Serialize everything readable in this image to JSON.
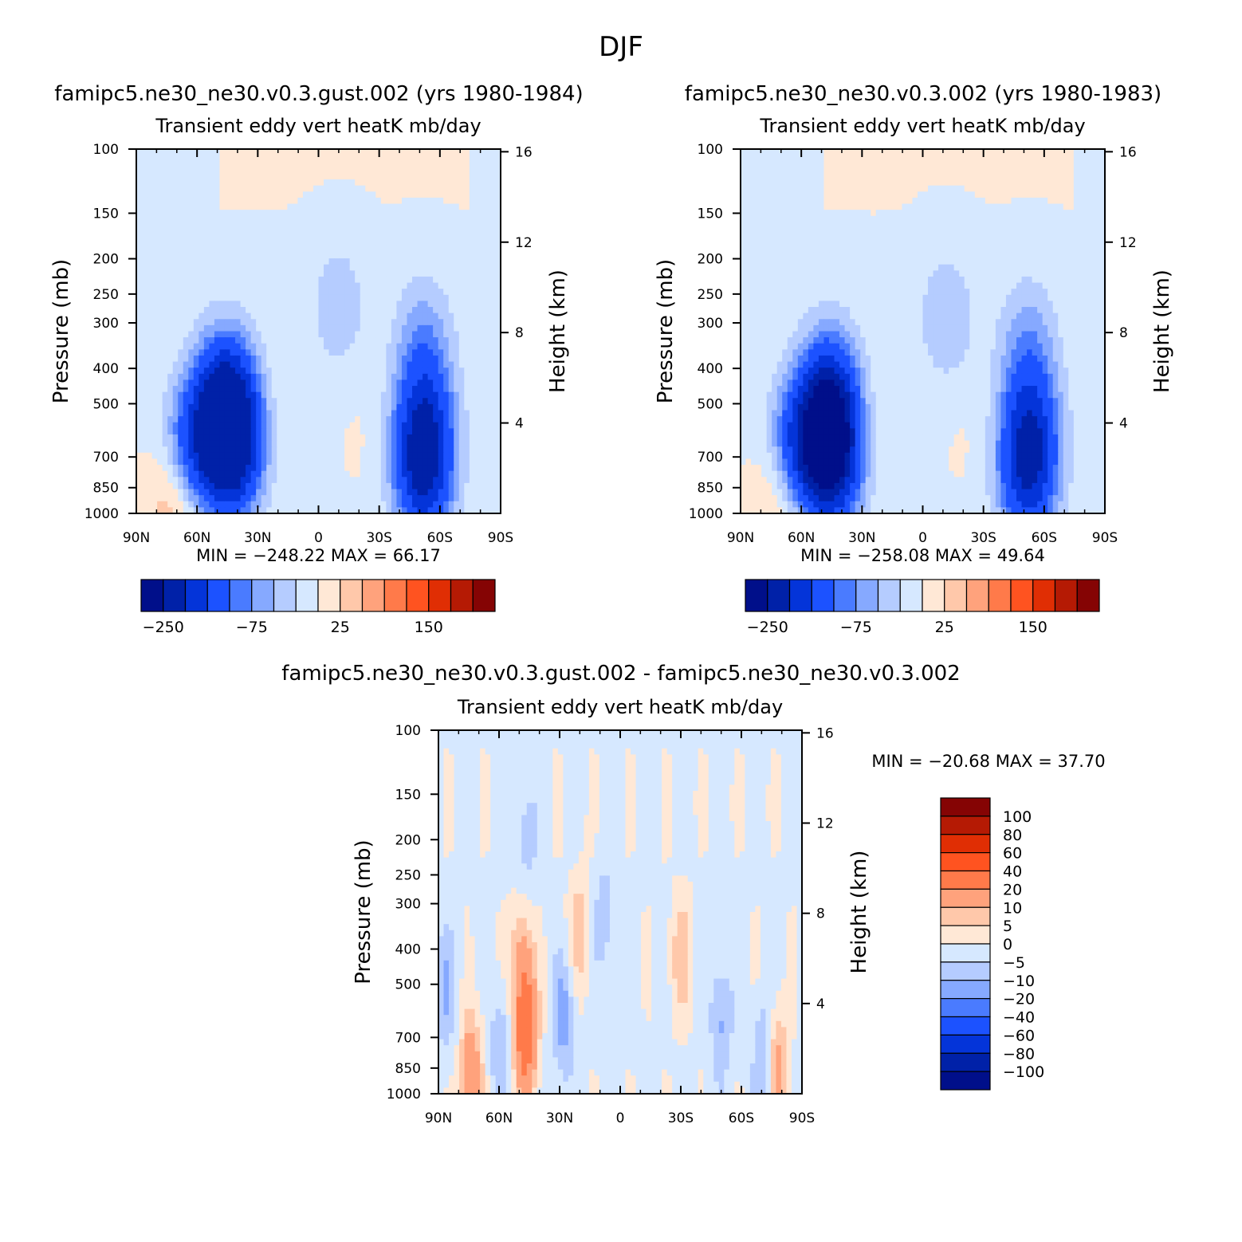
{
  "figure_title": "DJF",
  "colors": {
    "full_fill": [
      "#000f8a",
      "#0021a8",
      "#0434d9",
      "#1c52ff",
      "#4a7bff",
      "#86a9ff",
      "#b5ccff",
      "#d6e8ff",
      "#ffe8d6",
      "#ffc8aa",
      "#ffa27c",
      "#ff7a4a",
      "#ff5320",
      "#e02e04",
      "#b51a04",
      "#850404"
    ],
    "diff_fill": [
      "#000f8a",
      "#0021a8",
      "#0434d9",
      "#1c52ff",
      "#4a7bff",
      "#86a9ff",
      "#b5ccff",
      "#d6e8ff",
      "#ffe8d6",
      "#ffc8aa",
      "#ffa27c",
      "#ff7a4a",
      "#ff5320",
      "#e02e04",
      "#b51a04",
      "#850404"
    ]
  },
  "chart_data": [
    {
      "type": "heatmap",
      "panel": "upper-left",
      "run_title": "famipc5.ne30_ne30.v0.3.gust.002 (yrs 1980-1984)",
      "var_title": "Transient eddy vert heatK mb/day",
      "ylabel": "Pressure (mb)",
      "ylabel_right": "Height (km)",
      "x_tick_labels": [
        "90N",
        "60N",
        "30N",
        "0",
        "30S",
        "60S",
        "90S"
      ],
      "x_ticks": [
        90,
        60,
        30,
        0,
        -30,
        -60,
        -90
      ],
      "xlim": [
        90,
        -90
      ],
      "y_ticks": [
        100,
        150,
        200,
        250,
        300,
        400,
        500,
        700,
        850,
        1000
      ],
      "ylim": [
        1000,
        100
      ],
      "y_scale": "log",
      "height_ticks": [
        16,
        12,
        8,
        4
      ],
      "min_label": "MIN = -248.22",
      "max_label": "MAX = 66.17",
      "min": -248.22,
      "max": 66.17,
      "colorbar": {
        "orientation": "horizontal",
        "labels": [
          "-250",
          "-75",
          "25",
          "150"
        ]
      },
      "features": [
        {
          "lat": 42,
          "p": 650,
          "value": -240
        },
        {
          "lat": 46,
          "p": 480,
          "value": -175
        },
        {
          "lat": 60,
          "p": 650,
          "value": -150
        },
        {
          "lat": -52,
          "p": 560,
          "value": -130
        },
        {
          "lat": -52,
          "p": 780,
          "value": -175
        },
        {
          "lat": -52,
          "p": 340,
          "value": -60
        },
        {
          "lat": -10,
          "p": 270,
          "value": -40
        },
        {
          "lat": 70,
          "p": 960,
          "value": 60
        },
        {
          "lat": 20,
          "p": 560,
          "value": 6
        },
        {
          "lat": -22,
          "p": 610,
          "value": 6
        }
      ]
    },
    {
      "type": "heatmap",
      "panel": "upper-right",
      "run_title": "famipc5.ne30_ne30.v0.3.002 (yrs 1980-1983)",
      "var_title": "Transient eddy vert heatK mb/day",
      "ylabel": "Pressure (mb)",
      "ylabel_right": "Height (km)",
      "x_tick_labels": [
        "90N",
        "60N",
        "30N",
        "0",
        "30S",
        "60S",
        "90S"
      ],
      "x_ticks": [
        90,
        60,
        30,
        0,
        -30,
        -60,
        -90
      ],
      "xlim": [
        90,
        -90
      ],
      "y_ticks": [
        100,
        150,
        200,
        250,
        300,
        400,
        500,
        700,
        850,
        1000
      ],
      "ylim": [
        1000,
        100
      ],
      "y_scale": "log",
      "height_ticks": [
        16,
        12,
        8,
        4
      ],
      "min_label": "MIN = -258.08",
      "max_label": "MAX = 49.64",
      "min": -258.08,
      "max": 49.64,
      "colorbar": {
        "orientation": "horizontal",
        "labels": [
          "-250",
          "-75",
          "25",
          "150"
        ]
      },
      "features": [
        {
          "lat": 45,
          "p": 700,
          "value": -250
        },
        {
          "lat": 46,
          "p": 480,
          "value": -170
        },
        {
          "lat": 60,
          "p": 650,
          "value": -145
        },
        {
          "lat": -53,
          "p": 560,
          "value": -120
        },
        {
          "lat": -52,
          "p": 790,
          "value": -160
        },
        {
          "lat": -52,
          "p": 340,
          "value": -55
        },
        {
          "lat": -12,
          "p": 290,
          "value": -45
        },
        {
          "lat": 70,
          "p": 960,
          "value": 45
        },
        {
          "lat": 20,
          "p": 560,
          "value": 6
        },
        {
          "lat": -22,
          "p": 610,
          "value": 6
        }
      ]
    },
    {
      "type": "heatmap",
      "panel": "bottom-difference",
      "run_title": "famipc5.ne30_ne30.v0.3.gust.002 - famipc5.ne30_ne30.v0.3.002",
      "var_title": "Transient eddy vert heatK mb/day",
      "ylabel": "Pressure (mb)",
      "ylabel_right": "Height (km)",
      "x_tick_labels": [
        "90N",
        "60N",
        "30N",
        "0",
        "30S",
        "60S",
        "90S"
      ],
      "x_ticks": [
        90,
        60,
        30,
        0,
        -30,
        -60,
        -90
      ],
      "xlim": [
        90,
        -90
      ],
      "y_ticks": [
        100,
        150,
        200,
        250,
        300,
        400,
        500,
        700,
        850,
        1000
      ],
      "ylim": [
        1000,
        100
      ],
      "y_scale": "log",
      "height_ticks": [
        16,
        12,
        8,
        4
      ],
      "min_label": "MIN = -20.68",
      "max_label": "MAX = 37.70",
      "min": -20.68,
      "max": 37.7,
      "colorbar": {
        "orientation": "vertical",
        "labels": [
          "100",
          "80",
          "60",
          "40",
          "20",
          "10",
          "5",
          "0",
          "-5",
          "-10",
          "-20",
          "-40",
          "-60",
          "-80",
          "-100"
        ]
      },
      "features": [
        {
          "lat": 47,
          "p": 680,
          "value": 32
        },
        {
          "lat": 49,
          "p": 420,
          "value": 12
        },
        {
          "lat": 20,
          "p": 360,
          "value": 9
        },
        {
          "lat": 74,
          "p": 880,
          "value": 18
        },
        {
          "lat": -77,
          "p": 860,
          "value": 18
        },
        {
          "lat": -30,
          "p": 420,
          "value": 9
        },
        {
          "lat": 59,
          "p": 760,
          "value": -9
        },
        {
          "lat": 28,
          "p": 620,
          "value": -12
        },
        {
          "lat": 86,
          "p": 520,
          "value": -9
        },
        {
          "lat": -50,
          "p": 620,
          "value": -10
        },
        {
          "lat": 8,
          "p": 330,
          "value": -7
        },
        {
          "lat": -72,
          "p": 820,
          "value": -14
        },
        {
          "lat": 47,
          "p": 200,
          "value": -7
        }
      ]
    }
  ]
}
